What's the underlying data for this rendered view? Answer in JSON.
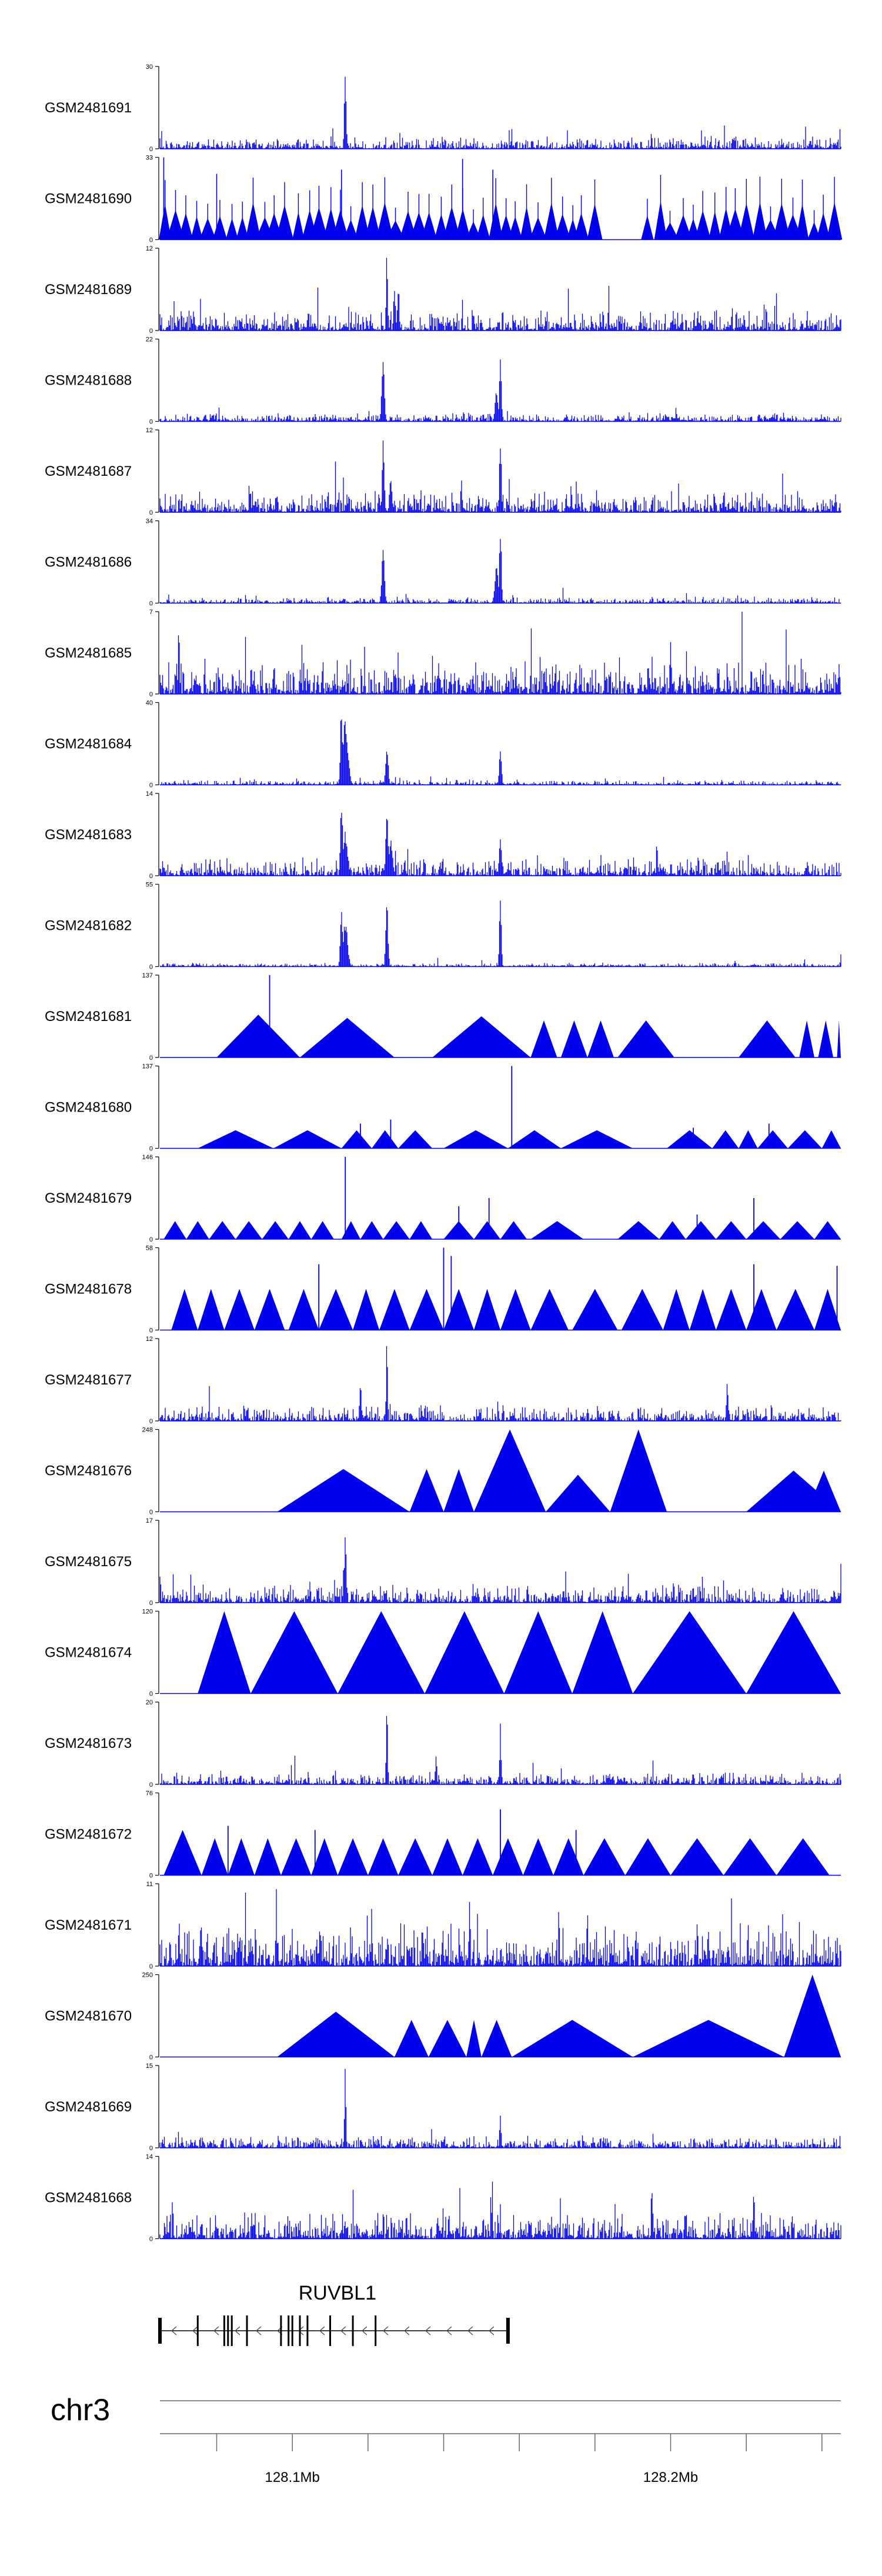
{
  "colors": {
    "signal": "#0000ee",
    "axis": "#000000",
    "gene": "#000000",
    "ideogram": "#666666"
  },
  "chart_data": {
    "type": "area",
    "title": "",
    "chromosome": "chr3",
    "region_mb": [
      128.065,
      128.245
    ],
    "position_labels": [
      "128.1Mb",
      "128.2Mb"
    ],
    "position_ticks_mb": [
      128.08,
      128.1,
      128.12,
      128.14,
      128.16,
      128.18,
      128.2,
      128.22,
      128.24
    ],
    "gene": {
      "name": "RUVBL1",
      "strand": "-",
      "start_mb": 128.065,
      "end_mb": 128.157,
      "exons_mb": [
        128.065,
        128.075,
        128.082,
        128.083,
        128.084,
        128.088,
        128.097,
        128.099,
        128.1,
        128.102,
        128.104,
        128.11,
        128.116,
        128.122,
        128.157
      ]
    },
    "tracks": [
      {
        "name": "GSM2481691",
        "ymax": 30,
        "style": "dense",
        "noise": 0.1,
        "seed": 11,
        "peaks": [
          [
            128.114,
            1.0,
            0.5
          ]
        ]
      },
      {
        "name": "GSM2481690",
        "ymax": 33,
        "style": "sparse",
        "count": 62,
        "gap": [
          128.18,
          128.191
        ],
        "seed": 12,
        "peaks": [
          [
            128.066,
            1.0,
            0.3
          ],
          [
            128.08,
            0.8,
            0.3
          ],
          [
            128.113,
            0.85,
            0.3
          ],
          [
            128.145,
            0.98,
            0.3
          ],
          [
            128.153,
            0.85,
            0.3
          ]
        ]
      },
      {
        "name": "GSM2481689",
        "ymax": 12,
        "style": "dense",
        "noise": 0.18,
        "seed": 13,
        "peaks": [
          [
            128.125,
            1.0,
            0.4
          ],
          [
            128.127,
            0.55,
            0.5
          ]
        ]
      },
      {
        "name": "GSM2481688",
        "ymax": 22,
        "style": "dense",
        "noise": 0.07,
        "seed": 14,
        "peaks": [
          [
            128.124,
            0.8,
            0.7
          ],
          [
            128.155,
            1.0,
            0.5
          ],
          [
            128.154,
            0.4,
            0.8
          ]
        ]
      },
      {
        "name": "GSM2481687",
        "ymax": 12,
        "style": "dense",
        "noise": 0.18,
        "seed": 15,
        "peaks": [
          [
            128.124,
            1.0,
            0.5
          ],
          [
            128.155,
            0.95,
            0.5
          ],
          [
            128.126,
            0.5,
            0.6
          ]
        ]
      },
      {
        "name": "GSM2481686",
        "ymax": 34,
        "style": "dense",
        "noise": 0.05,
        "seed": 16,
        "peaks": [
          [
            128.124,
            0.72,
            0.7
          ],
          [
            128.155,
            1.0,
            0.5
          ],
          [
            128.154,
            0.5,
            0.9
          ]
        ]
      },
      {
        "name": "GSM2481685",
        "ymax": 7,
        "style": "dense",
        "noise": 0.3,
        "seed": 17,
        "peaks": [
          [
            128.07,
            0.9,
            0.4
          ],
          [
            128.2,
            0.8,
            0.4
          ]
        ]
      },
      {
        "name": "GSM2481684",
        "ymax": 40,
        "style": "dense",
        "noise": 0.04,
        "seed": 18,
        "peaks": [
          [
            128.113,
            1.0,
            0.6
          ],
          [
            128.114,
            0.8,
            1.4
          ],
          [
            128.125,
            0.45,
            0.7
          ],
          [
            128.155,
            0.45,
            0.6
          ]
        ]
      },
      {
        "name": "GSM2481683",
        "ymax": 14,
        "style": "dense",
        "noise": 0.14,
        "seed": 19,
        "peaks": [
          [
            128.113,
            0.95,
            0.6
          ],
          [
            128.114,
            0.55,
            1.2
          ],
          [
            128.125,
            0.88,
            0.6
          ],
          [
            128.126,
            0.45,
            1.0
          ],
          [
            128.155,
            0.55,
            0.6
          ]
        ]
      },
      {
        "name": "GSM2481682",
        "ymax": 55,
        "style": "dense",
        "noise": 0.03,
        "seed": 20,
        "peaks": [
          [
            128.113,
            0.72,
            0.6
          ],
          [
            128.114,
            0.55,
            1.2
          ],
          [
            128.125,
            0.85,
            0.6
          ],
          [
            128.155,
            0.95,
            0.5
          ],
          [
            128.245,
            0.18,
            0.3
          ]
        ]
      },
      {
        "name": "GSM2481681",
        "ymax": 137,
        "style": "tri",
        "seed": 21,
        "tris": [
          [
            128.08,
            128.102,
            0.52
          ],
          [
            128.102,
            128.127,
            0.48
          ],
          [
            128.137,
            128.163,
            0.5
          ],
          [
            128.163,
            128.17,
            0.45
          ],
          [
            128.171,
            128.178,
            0.45
          ],
          [
            128.178,
            128.185,
            0.45
          ],
          [
            128.186,
            128.201,
            0.45
          ],
          [
            128.218,
            128.233,
            0.45
          ],
          [
            128.234,
            128.238,
            0.45
          ],
          [
            128.239,
            128.243,
            0.45
          ],
          [
            128.244,
            128.252,
            0.45
          ]
        ],
        "spikes": [
          [
            128.094,
            1.0
          ]
        ]
      },
      {
        "name": "GSM2481680",
        "ymax": 137,
        "style": "tri",
        "seed": 22,
        "tris": [
          [
            128.075,
            128.095,
            0.22
          ],
          [
            128.095,
            128.113,
            0.22
          ],
          [
            128.113,
            128.121,
            0.22
          ],
          [
            128.121,
            128.128,
            0.22
          ],
          [
            128.128,
            128.137,
            0.22
          ],
          [
            128.14,
            128.157,
            0.22
          ],
          [
            128.157,
            128.171,
            0.22
          ],
          [
            128.171,
            128.19,
            0.22
          ],
          [
            128.199,
            128.211,
            0.22
          ],
          [
            128.211,
            128.218,
            0.22
          ],
          [
            128.218,
            128.223,
            0.22
          ],
          [
            128.223,
            128.231,
            0.22
          ],
          [
            128.231,
            128.24,
            0.22
          ],
          [
            128.24,
            128.252,
            0.22
          ]
        ],
        "spikes": [
          [
            128.158,
            1.0
          ],
          [
            128.126,
            0.35
          ],
          [
            128.118,
            0.3
          ],
          [
            128.206,
            0.25
          ],
          [
            128.226,
            0.3
          ]
        ]
      },
      {
        "name": "GSM2481679",
        "ymax": 146,
        "style": "tri",
        "seed": 23,
        "tris": [
          [
            128.066,
            128.072,
            0.22
          ],
          [
            128.072,
            128.078,
            0.22
          ],
          [
            128.078,
            128.085,
            0.22
          ],
          [
            128.085,
            128.092,
            0.22
          ],
          [
            128.092,
            128.099,
            0.22
          ],
          [
            128.099,
            128.105,
            0.22
          ],
          [
            128.105,
            128.111,
            0.22
          ],
          [
            128.113,
            128.118,
            0.22
          ],
          [
            128.118,
            128.124,
            0.22
          ],
          [
            128.124,
            128.131,
            0.22
          ],
          [
            128.131,
            128.137,
            0.22
          ],
          [
            128.14,
            128.148,
            0.22
          ],
          [
            128.148,
            128.155,
            0.22
          ],
          [
            128.155,
            128.162,
            0.22
          ],
          [
            128.163,
            128.177,
            0.22
          ],
          [
            128.186,
            128.197,
            0.22
          ],
          [
            128.197,
            128.204,
            0.22
          ],
          [
            128.204,
            128.212,
            0.22
          ],
          [
            128.212,
            128.22,
            0.22
          ],
          [
            128.22,
            128.229,
            0.22
          ],
          [
            128.229,
            128.238,
            0.22
          ],
          [
            128.238,
            128.252,
            0.22
          ]
        ],
        "spikes": [
          [
            128.114,
            1.0
          ],
          [
            128.152,
            0.5
          ],
          [
            128.144,
            0.4
          ],
          [
            128.222,
            0.5
          ],
          [
            128.207,
            0.3
          ]
        ]
      },
      {
        "name": "GSM2481678",
        "ymax": 58,
        "style": "tri",
        "seed": 24,
        "tris": [
          [
            128.068,
            128.075,
            0.5
          ],
          [
            128.075,
            128.082,
            0.5
          ],
          [
            128.082,
            128.09,
            0.5
          ],
          [
            128.09,
            128.098,
            0.5
          ],
          [
            128.099,
            128.107,
            0.5
          ],
          [
            128.107,
            128.116,
            0.5
          ],
          [
            128.116,
            128.123,
            0.5
          ],
          [
            128.123,
            128.131,
            0.5
          ],
          [
            128.131,
            128.14,
            0.5
          ],
          [
            128.14,
            128.148,
            0.5
          ],
          [
            128.148,
            128.155,
            0.5
          ],
          [
            128.155,
            128.163,
            0.5
          ],
          [
            128.163,
            128.173,
            0.5
          ],
          [
            128.174,
            128.186,
            0.5
          ],
          [
            128.187,
            128.198,
            0.5
          ],
          [
            128.198,
            128.205,
            0.5
          ],
          [
            128.205,
            128.212,
            0.5
          ],
          [
            128.212,
            128.22,
            0.5
          ],
          [
            128.22,
            128.228,
            0.5
          ],
          [
            128.228,
            128.238,
            0.5
          ],
          [
            128.238,
            128.246,
            0.5
          ]
        ],
        "spikes": [
          [
            128.14,
            1.0
          ],
          [
            128.142,
            0.9
          ],
          [
            128.107,
            0.8
          ],
          [
            128.222,
            0.8
          ],
          [
            128.244,
            0.78
          ]
        ]
      },
      {
        "name": "GSM2481677",
        "ymax": 12,
        "style": "dense",
        "noise": 0.13,
        "seed": 25,
        "peaks": [
          [
            128.125,
            1.0,
            0.4
          ],
          [
            128.118,
            0.5,
            0.5
          ],
          [
            128.215,
            0.5,
            0.5
          ]
        ]
      },
      {
        "name": "GSM2481676",
        "ymax": 248,
        "style": "tri",
        "seed": 26,
        "tris": [
          [
            128.096,
            128.131,
            0.52
          ],
          [
            128.131,
            128.14,
            0.52
          ],
          [
            128.14,
            128.148,
            0.52
          ],
          [
            128.148,
            128.167,
            1.0
          ],
          [
            128.167,
            128.184,
            0.45
          ],
          [
            128.184,
            128.199,
            1.0
          ],
          [
            128.22,
            128.245,
            0.5
          ],
          [
            128.236,
            128.246,
            0.5
          ]
        ],
        "spikes": []
      },
      {
        "name": "GSM2481675",
        "ymax": 17,
        "style": "dense",
        "noise": 0.15,
        "seed": 27,
        "peaks": [
          [
            128.114,
            1.0,
            0.5
          ],
          [
            128.245,
            0.5,
            0.3
          ]
        ]
      },
      {
        "name": "GSM2481674",
        "ymax": 120,
        "style": "tri",
        "seed": 28,
        "tris": [
          [
            128.075,
            128.089,
            1.0
          ],
          [
            128.089,
            128.112,
            1.0
          ],
          [
            128.112,
            128.135,
            1.0
          ],
          [
            128.135,
            128.156,
            1.0
          ],
          [
            128.156,
            128.174,
            1.0
          ],
          [
            128.174,
            128.19,
            1.0
          ],
          [
            128.19,
            128.22,
            1.0
          ],
          [
            128.22,
            128.245,
            1.0
          ]
        ],
        "spikes": []
      },
      {
        "name": "GSM2481673",
        "ymax": 20,
        "style": "dense",
        "noise": 0.1,
        "seed": 29,
        "peaks": [
          [
            128.125,
            1.0,
            0.4
          ],
          [
            128.155,
            0.75,
            0.4
          ],
          [
            128.138,
            0.45,
            0.4
          ]
        ]
      },
      {
        "name": "GSM2481672",
        "ymax": 76,
        "style": "tri",
        "seed": 30,
        "tris": [
          [
            128.066,
            128.076,
            0.55
          ],
          [
            128.076,
            128.083,
            0.45
          ],
          [
            128.083,
            128.09,
            0.45
          ],
          [
            128.09,
            128.097,
            0.45
          ],
          [
            128.097,
            128.105,
            0.45
          ],
          [
            128.105,
            128.112,
            0.45
          ],
          [
            128.112,
            128.12,
            0.45
          ],
          [
            128.12,
            128.128,
            0.45
          ],
          [
            128.128,
            128.137,
            0.45
          ],
          [
            128.137,
            128.145,
            0.45
          ],
          [
            128.145,
            128.153,
            0.45
          ],
          [
            128.153,
            128.161,
            0.45
          ],
          [
            128.161,
            128.169,
            0.45
          ],
          [
            128.169,
            128.177,
            0.45
          ],
          [
            128.177,
            128.188,
            0.45
          ],
          [
            128.188,
            128.2,
            0.45
          ],
          [
            128.2,
            128.214,
            0.45
          ],
          [
            128.214,
            128.228,
            0.45
          ],
          [
            128.228,
            128.242,
            0.45
          ]
        ],
        "spikes": [
          [
            128.083,
            0.6
          ],
          [
            128.106,
            0.55
          ],
          [
            128.155,
            0.8
          ],
          [
            128.175,
            0.55
          ]
        ]
      },
      {
        "name": "GSM2481671",
        "ymax": 11,
        "style": "dense",
        "noise": 0.34,
        "seed": 31,
        "peaks": [
          [
            128.178,
            0.95,
            0.3
          ],
          [
            128.121,
            0.8,
            0.3
          ]
        ]
      },
      {
        "name": "GSM2481670",
        "ymax": 250,
        "style": "tri",
        "seed": 32,
        "tris": [
          [
            128.096,
            128.127,
            0.55
          ],
          [
            128.127,
            128.136,
            0.45
          ],
          [
            128.136,
            128.146,
            0.45
          ],
          [
            128.146,
            128.15,
            0.45
          ],
          [
            128.15,
            128.158,
            0.45
          ],
          [
            128.158,
            128.19,
            0.45
          ],
          [
            128.19,
            128.23,
            0.45
          ],
          [
            128.23,
            128.247,
            1.0
          ]
        ],
        "spikes": []
      },
      {
        "name": "GSM2481669",
        "ymax": 15,
        "style": "dense",
        "noise": 0.1,
        "seed": 33,
        "peaks": [
          [
            128.114,
            1.0,
            0.4
          ],
          [
            128.155,
            0.45,
            0.4
          ]
        ]
      },
      {
        "name": "GSM2481668",
        "ymax": 14,
        "style": "dense",
        "noise": 0.22,
        "seed": 34,
        "peaks": [
          [
            128.195,
            0.85,
            0.3
          ],
          [
            128.222,
            0.75,
            0.3
          ]
        ]
      }
    ]
  }
}
